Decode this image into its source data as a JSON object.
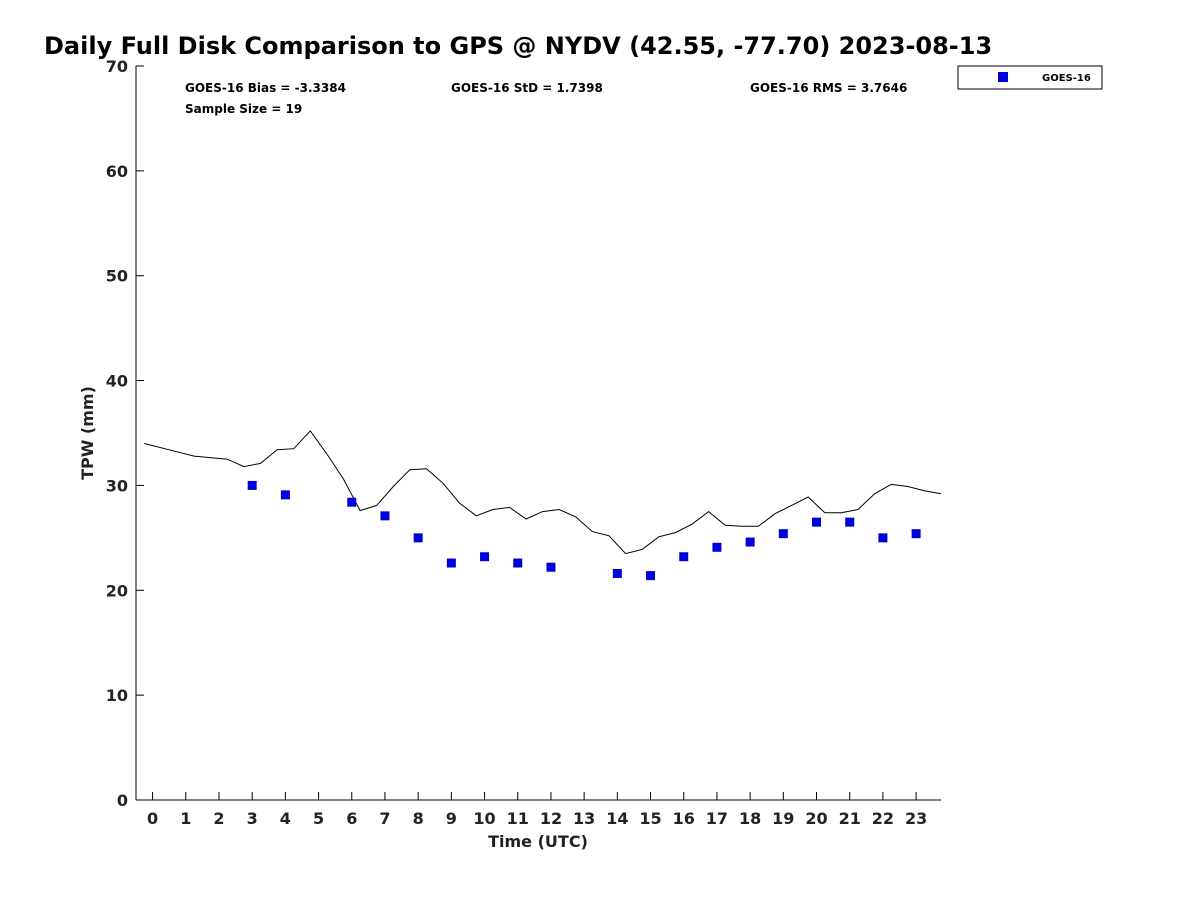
{
  "chart_data": {
    "type": "scatter",
    "title": "Daily Full Disk Comparison to GPS @ NYDV (42.55, -77.70) 2023-08-13",
    "xlabel": "Time (UTC)",
    "ylabel": "TPW (mm)",
    "xlim": [
      -0.5,
      23.75
    ],
    "ylim": [
      0,
      70
    ],
    "x_ticks": [
      "0",
      "1",
      "2",
      "3",
      "4",
      "5",
      "6",
      "7",
      "8",
      "9",
      "10",
      "11",
      "12",
      "13",
      "14",
      "15",
      "16",
      "17",
      "18",
      "19",
      "20",
      "21",
      "22",
      "23"
    ],
    "y_ticks": [
      "0",
      "10",
      "20",
      "30",
      "40",
      "50",
      "60",
      "70"
    ],
    "grid": false,
    "legend_placement": "top-right outside",
    "stats": {
      "bias": "GOES-16 Bias = -3.3384",
      "std": "GOES-16 StD = 1.7398",
      "rms": "GOES-16 RMS = 3.7646",
      "sample": "Sample Size = 19"
    },
    "series": [
      {
        "kind": "line",
        "color": "#000000",
        "points": [
          [
            -0.25,
            34.0
          ],
          [
            0.5,
            33.4
          ],
          [
            1.25,
            32.8
          ],
          [
            2.25,
            32.5
          ],
          [
            2.75,
            31.8
          ],
          [
            3.25,
            32.1
          ],
          [
            3.75,
            33.4
          ],
          [
            4.25,
            33.5
          ],
          [
            4.75,
            35.2
          ],
          [
            5.25,
            33.0
          ],
          [
            5.75,
            30.6
          ],
          [
            6.25,
            27.6
          ],
          [
            6.75,
            28.1
          ],
          [
            7.25,
            29.9
          ],
          [
            7.75,
            31.5
          ],
          [
            8.25,
            31.6
          ],
          [
            8.75,
            30.2
          ],
          [
            9.25,
            28.3
          ],
          [
            9.75,
            27.1
          ],
          [
            10.25,
            27.7
          ],
          [
            10.75,
            27.9
          ],
          [
            11.25,
            26.8
          ],
          [
            11.75,
            27.5
          ],
          [
            12.25,
            27.7
          ],
          [
            12.75,
            27.0
          ],
          [
            13.25,
            25.6
          ],
          [
            13.75,
            25.2
          ],
          [
            14.25,
            23.5
          ],
          [
            14.75,
            23.9
          ],
          [
            15.25,
            25.1
          ],
          [
            15.75,
            25.5
          ],
          [
            16.25,
            26.3
          ],
          [
            16.75,
            27.5
          ],
          [
            17.25,
            26.2
          ],
          [
            17.75,
            26.1
          ],
          [
            18.25,
            26.1
          ],
          [
            18.75,
            27.3
          ],
          [
            19.25,
            28.1
          ],
          [
            19.75,
            28.9
          ],
          [
            20.25,
            27.4
          ],
          [
            20.75,
            27.4
          ],
          [
            21.25,
            27.7
          ],
          [
            21.75,
            29.2
          ],
          [
            22.25,
            30.1
          ],
          [
            22.75,
            29.9
          ],
          [
            23.25,
            29.5
          ],
          [
            23.75,
            29.2
          ]
        ]
      },
      {
        "name": "GOES-16",
        "kind": "scatter",
        "color": "#0000dd",
        "points": [
          [
            3,
            30.0
          ],
          [
            4,
            29.1
          ],
          [
            6,
            28.4
          ],
          [
            7,
            27.1
          ],
          [
            8,
            25.0
          ],
          [
            9,
            22.6
          ],
          [
            10,
            23.2
          ],
          [
            11,
            22.6
          ],
          [
            12,
            22.2
          ],
          [
            14,
            21.6
          ],
          [
            15,
            21.4
          ],
          [
            16,
            23.2
          ],
          [
            17,
            24.1
          ],
          [
            18,
            24.6
          ],
          [
            19,
            25.4
          ],
          [
            20,
            26.5
          ],
          [
            21,
            26.5
          ],
          [
            22,
            25.0
          ],
          [
            23,
            25.4
          ]
        ]
      }
    ]
  }
}
